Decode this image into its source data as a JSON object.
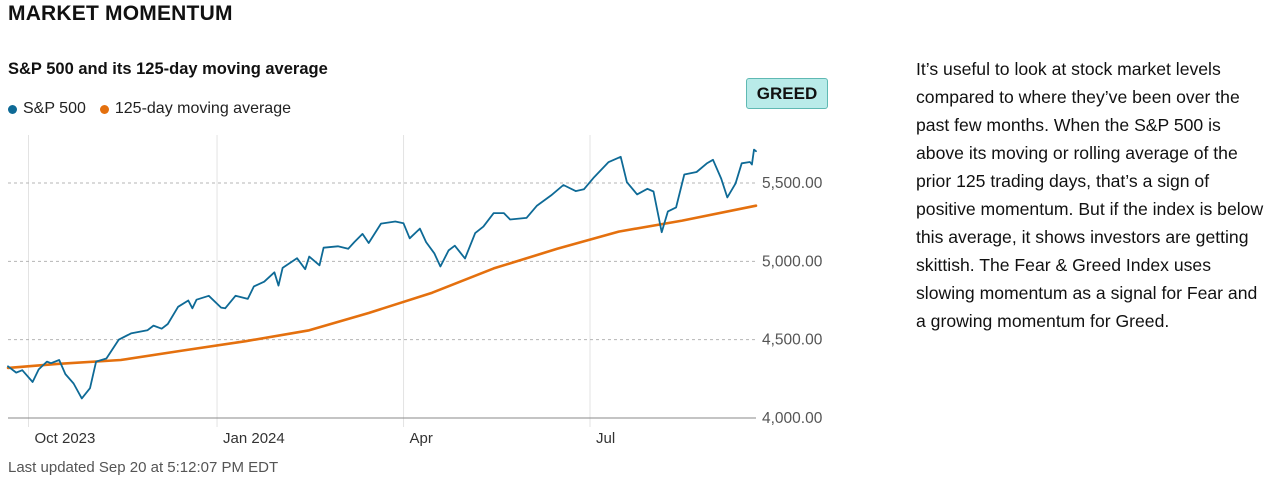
{
  "header": {
    "title": "MARKET MOMENTUM"
  },
  "chart_data": {
    "type": "line",
    "title": "S&P 500 and its 125-day moving average",
    "xlabel": "",
    "ylabel": "",
    "x_tick_labels": [
      "Oct 2023",
      "Jan 2024",
      "Apr",
      "Jul"
    ],
    "y_tick_labels": [
      "4,000.00",
      "4,500.00",
      "5,000.00",
      "5,500.00"
    ],
    "y_ticks": [
      4000,
      4500,
      5000,
      5500
    ],
    "ylim": [
      3950,
      5800
    ],
    "xlim": [
      "2023-09-21",
      "2024-09-20"
    ],
    "x_ticks": [
      "2023-10-01",
      "2024-01-01",
      "2024-04-01",
      "2024-07-01"
    ],
    "grid": "vertical",
    "legend_position": "top-left",
    "status_badge": "GREED",
    "series": [
      {
        "name": "S&P 500",
        "color": "#0e6a96",
        "points": [
          [
            "2023-09-21",
            4330
          ],
          [
            "2023-09-25",
            4290
          ],
          [
            "2023-09-28",
            4305
          ],
          [
            "2023-10-03",
            4230
          ],
          [
            "2023-10-06",
            4310
          ],
          [
            "2023-10-10",
            4360
          ],
          [
            "2023-10-12",
            4350
          ],
          [
            "2023-10-16",
            4370
          ],
          [
            "2023-10-19",
            4280
          ],
          [
            "2023-10-23",
            4220
          ],
          [
            "2023-10-27",
            4125
          ],
          [
            "2023-10-31",
            4190
          ],
          [
            "2023-11-03",
            4360
          ],
          [
            "2023-11-08",
            4380
          ],
          [
            "2023-11-14",
            4500
          ],
          [
            "2023-11-20",
            4540
          ],
          [
            "2023-11-28",
            4560
          ],
          [
            "2023-12-01",
            4590
          ],
          [
            "2023-12-05",
            4570
          ],
          [
            "2023-12-08",
            4600
          ],
          [
            "2023-12-13",
            4710
          ],
          [
            "2023-12-18",
            4750
          ],
          [
            "2023-12-20",
            4700
          ],
          [
            "2023-12-22",
            4755
          ],
          [
            "2023-12-28",
            4780
          ],
          [
            "2024-01-03",
            4705
          ],
          [
            "2024-01-05",
            4700
          ],
          [
            "2024-01-10",
            4780
          ],
          [
            "2024-01-16",
            4760
          ],
          [
            "2024-01-19",
            4840
          ],
          [
            "2024-01-24",
            4870
          ],
          [
            "2024-01-29",
            4930
          ],
          [
            "2024-01-31",
            4845
          ],
          [
            "2024-02-02",
            4958
          ],
          [
            "2024-02-09",
            5020
          ],
          [
            "2024-02-13",
            4950
          ],
          [
            "2024-02-15",
            5030
          ],
          [
            "2024-02-20",
            4975
          ],
          [
            "2024-02-22",
            5087
          ],
          [
            "2024-02-29",
            5096
          ],
          [
            "2024-03-05",
            5080
          ],
          [
            "2024-03-08",
            5123
          ],
          [
            "2024-03-12",
            5175
          ],
          [
            "2024-03-15",
            5117
          ],
          [
            "2024-03-21",
            5241
          ],
          [
            "2024-03-28",
            5254
          ],
          [
            "2024-04-01",
            5243
          ],
          [
            "2024-04-04",
            5147
          ],
          [
            "2024-04-09",
            5209
          ],
          [
            "2024-04-12",
            5123
          ],
          [
            "2024-04-16",
            5051
          ],
          [
            "2024-04-19",
            4967
          ],
          [
            "2024-04-23",
            5070
          ],
          [
            "2024-04-26",
            5100
          ],
          [
            "2024-05-01",
            5018
          ],
          [
            "2024-05-06",
            5180
          ],
          [
            "2024-05-10",
            5222
          ],
          [
            "2024-05-15",
            5308
          ],
          [
            "2024-05-20",
            5308
          ],
          [
            "2024-05-23",
            5267
          ],
          [
            "2024-05-31",
            5277
          ],
          [
            "2024-06-05",
            5354
          ],
          [
            "2024-06-12",
            5421
          ],
          [
            "2024-06-18",
            5487
          ],
          [
            "2024-06-24",
            5448
          ],
          [
            "2024-06-28",
            5460
          ],
          [
            "2024-07-03",
            5537
          ],
          [
            "2024-07-10",
            5633
          ],
          [
            "2024-07-16",
            5667
          ],
          [
            "2024-07-19",
            5505
          ],
          [
            "2024-07-24",
            5427
          ],
          [
            "2024-07-29",
            5463
          ],
          [
            "2024-08-01",
            5446
          ],
          [
            "2024-08-05",
            5186
          ],
          [
            "2024-08-08",
            5319
          ],
          [
            "2024-08-12",
            5344
          ],
          [
            "2024-08-16",
            5554
          ],
          [
            "2024-08-22",
            5570
          ],
          [
            "2024-08-27",
            5625
          ],
          [
            "2024-08-30",
            5648
          ],
          [
            "2024-09-03",
            5528
          ],
          [
            "2024-09-06",
            5408
          ],
          [
            "2024-09-10",
            5496
          ],
          [
            "2024-09-13",
            5626
          ],
          [
            "2024-09-17",
            5634
          ],
          [
            "2024-09-18",
            5618
          ],
          [
            "2024-09-19",
            5713
          ],
          [
            "2024-09-20",
            5703
          ]
        ]
      },
      {
        "name": "125-day moving average",
        "color": "#e4700e",
        "points": [
          [
            "2023-09-21",
            4320
          ],
          [
            "2023-10-15",
            4345
          ],
          [
            "2023-11-15",
            4370
          ],
          [
            "2023-12-15",
            4430
          ],
          [
            "2024-01-15",
            4490
          ],
          [
            "2024-02-15",
            4560
          ],
          [
            "2024-03-15",
            4670
          ],
          [
            "2024-04-15",
            4800
          ],
          [
            "2024-05-15",
            4955
          ],
          [
            "2024-06-15",
            5080
          ],
          [
            "2024-07-15",
            5190
          ],
          [
            "2024-08-15",
            5260
          ],
          [
            "2024-09-20",
            5355
          ]
        ]
      }
    ]
  },
  "footer": {
    "last_updated": "Last updated Sep 20 at 5:12:07 PM EDT"
  },
  "description": "It’s useful to look at stock market levels compared to where they’ve been over the past few months. When the S&P 500 is above its moving or rolling average of the prior 125 trading days, that’s a sign of positive momentum. But if the index is below this average, it shows investors are getting skittish. The Fear & Greed Index uses slowing momentum as a signal for Fear and a growing momentum for Greed."
}
